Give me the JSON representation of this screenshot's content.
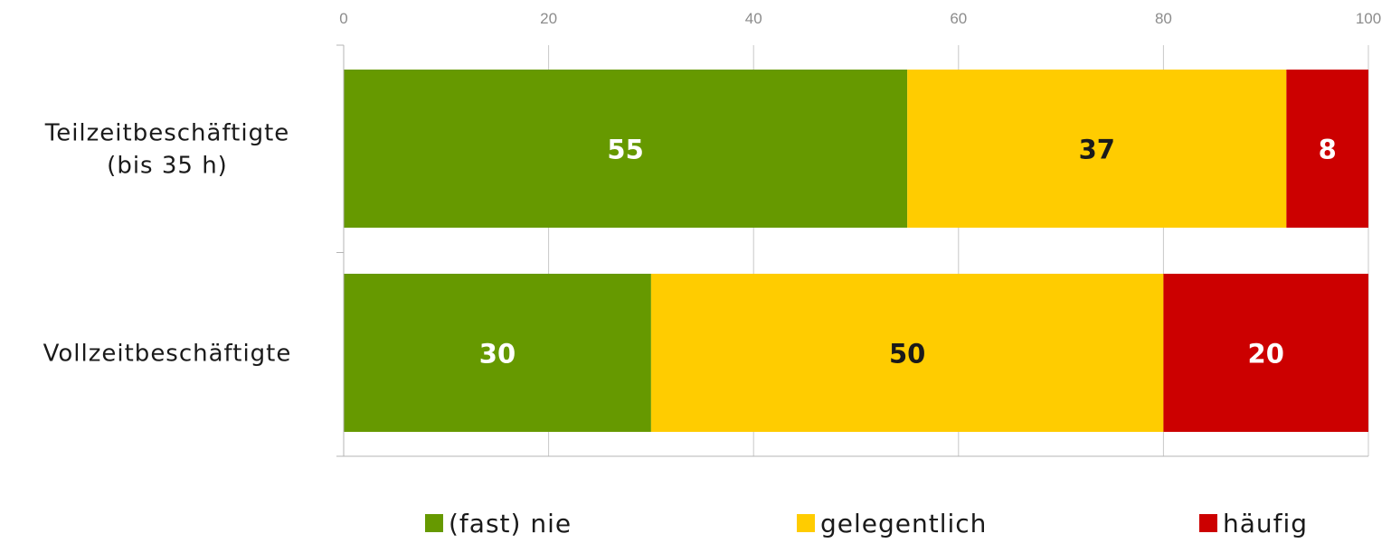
{
  "chart_data": {
    "type": "bar",
    "orientation": "horizontal",
    "stacked": true,
    "categories": [
      "Teilzeitbeschäftigte (bis 35 h)",
      "Vollzeitbeschäftigte"
    ],
    "category_lines": [
      [
        "Teilzeitbeschäftigte",
        "(bis 35 h)"
      ],
      [
        "Vollzeitbeschäftigte"
      ]
    ],
    "series": [
      {
        "name": "(fast) nie",
        "values": [
          55,
          30
        ],
        "color": "#669900",
        "label_color": "#ffffff"
      },
      {
        "name": "gelegentlich",
        "values": [
          37,
          50
        ],
        "color": "#ffcc00",
        "label_color": "#1a1a1a"
      },
      {
        "name": "häufig",
        "values": [
          8,
          20
        ],
        "color": "#cc0000",
        "label_color": "#ffffff"
      }
    ],
    "xlim": [
      0,
      100
    ],
    "xticks": [
      0,
      20,
      40,
      60,
      80,
      100
    ],
    "xaxis_position": "top",
    "grid": true,
    "legend": "bottom"
  }
}
